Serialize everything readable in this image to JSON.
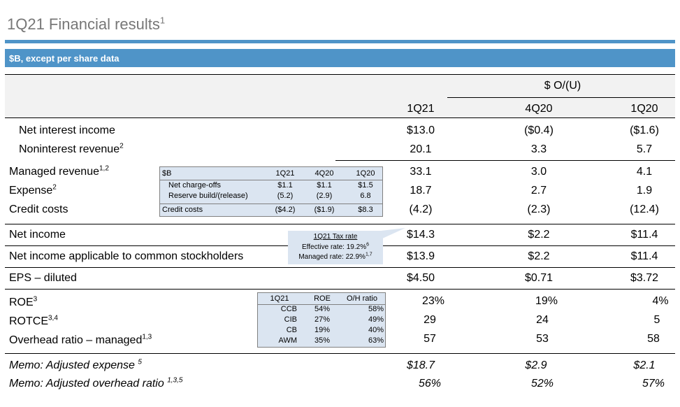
{
  "title": "1Q21 Financial results",
  "title_sup": "1",
  "band_label": "$B, except per share data",
  "colors": {
    "band": "#4f94c8",
    "inset": "#dbe5f1",
    "header_bg": "#f2f2f2",
    "title": "#777777"
  },
  "header": {
    "ou_label": "$ O/(U)",
    "c1": "1Q21",
    "c2": "4Q20",
    "c3": "1Q20"
  },
  "rows": [
    {
      "label": "Net interest income",
      "sup": "",
      "v1": "$13.0",
      "v2": "($0.4)",
      "v3": "($1.6)"
    },
    {
      "label": "Noninterest revenue",
      "sup": "2",
      "v1": "20.1",
      "v2": "3.3",
      "v3": "5.7"
    },
    {
      "label": "Managed revenue",
      "sup": "1,2",
      "v1": "33.1",
      "v2": "3.0",
      "v3": "4.1"
    },
    {
      "label": "Expense",
      "sup": "2",
      "v1": "18.7",
      "v2": "2.7",
      "v3": "1.9"
    },
    {
      "label": "Credit costs",
      "sup": "",
      "v1": "(4.2)",
      "v2": "(2.3)",
      "v3": "(12.4)"
    },
    {
      "label": "Net income",
      "sup": "",
      "v1": "$14.3",
      "v2": "$2.2",
      "v3": "$11.4"
    },
    {
      "label": "Net income applicable to common stockholders",
      "sup": "",
      "v1": "$13.9",
      "v2": "$2.2",
      "v3": "$11.4"
    },
    {
      "label": "EPS – diluted",
      "sup": "",
      "v1": "$4.50",
      "v2": "$0.71",
      "v3": "$3.72"
    },
    {
      "label": "ROE",
      "sup": "3",
      "v1": "23%",
      "v2": "19%",
      "v3": "4%"
    },
    {
      "label": "ROTCE",
      "sup": "3,4",
      "v1": "29",
      "v2": "24",
      "v3": "5"
    },
    {
      "label": "Overhead ratio – managed",
      "sup": "1,3",
      "v1": "57",
      "v2": "53",
      "v3": "58"
    }
  ],
  "memos": [
    {
      "label": "Memo: Adjusted expense",
      "sup": "5",
      "v1": "$18.7",
      "v2": "$2.9",
      "v3": "$2.1"
    },
    {
      "label": "Memo: Adjusted overhead ratio",
      "sup": "1,3,5",
      "v1": "56%",
      "v2": "52%",
      "v3": "57%"
    }
  ],
  "credit_inset": {
    "h0": "$B",
    "h1": "1Q21",
    "h2": "4Q20",
    "h3": "1Q20",
    "rows": [
      {
        "label": "Net charge-offs",
        "v1": "$1.1",
        "v2": "$1.1",
        "v3": "$1.5"
      },
      {
        "label": "Reserve build/(release)",
        "v1": "(5.2)",
        "v2": "(2.9)",
        "v3": "6.8"
      },
      {
        "label": "Credit costs",
        "v1": "($4.2)",
        "v2": "($1.9)",
        "v3": "$8.3"
      }
    ]
  },
  "tax_inset": {
    "title": "1Q21 Tax rate",
    "effective": "Effective rate: 19.2%",
    "effective_sup": "6",
    "managed": "Managed rate: 22.9%",
    "managed_sup": "1,7"
  },
  "roe_inset": {
    "h0": "1Q21",
    "h1": "ROE",
    "h2": "O/H ratio",
    "rows": [
      {
        "seg": "CCB",
        "roe": "54%",
        "oh": "58%"
      },
      {
        "seg": "CIB",
        "roe": "27%",
        "oh": "49%"
      },
      {
        "seg": "CB",
        "roe": "19%",
        "oh": "40%"
      },
      {
        "seg": "AWM",
        "roe": "35%",
        "oh": "63%"
      }
    ]
  }
}
